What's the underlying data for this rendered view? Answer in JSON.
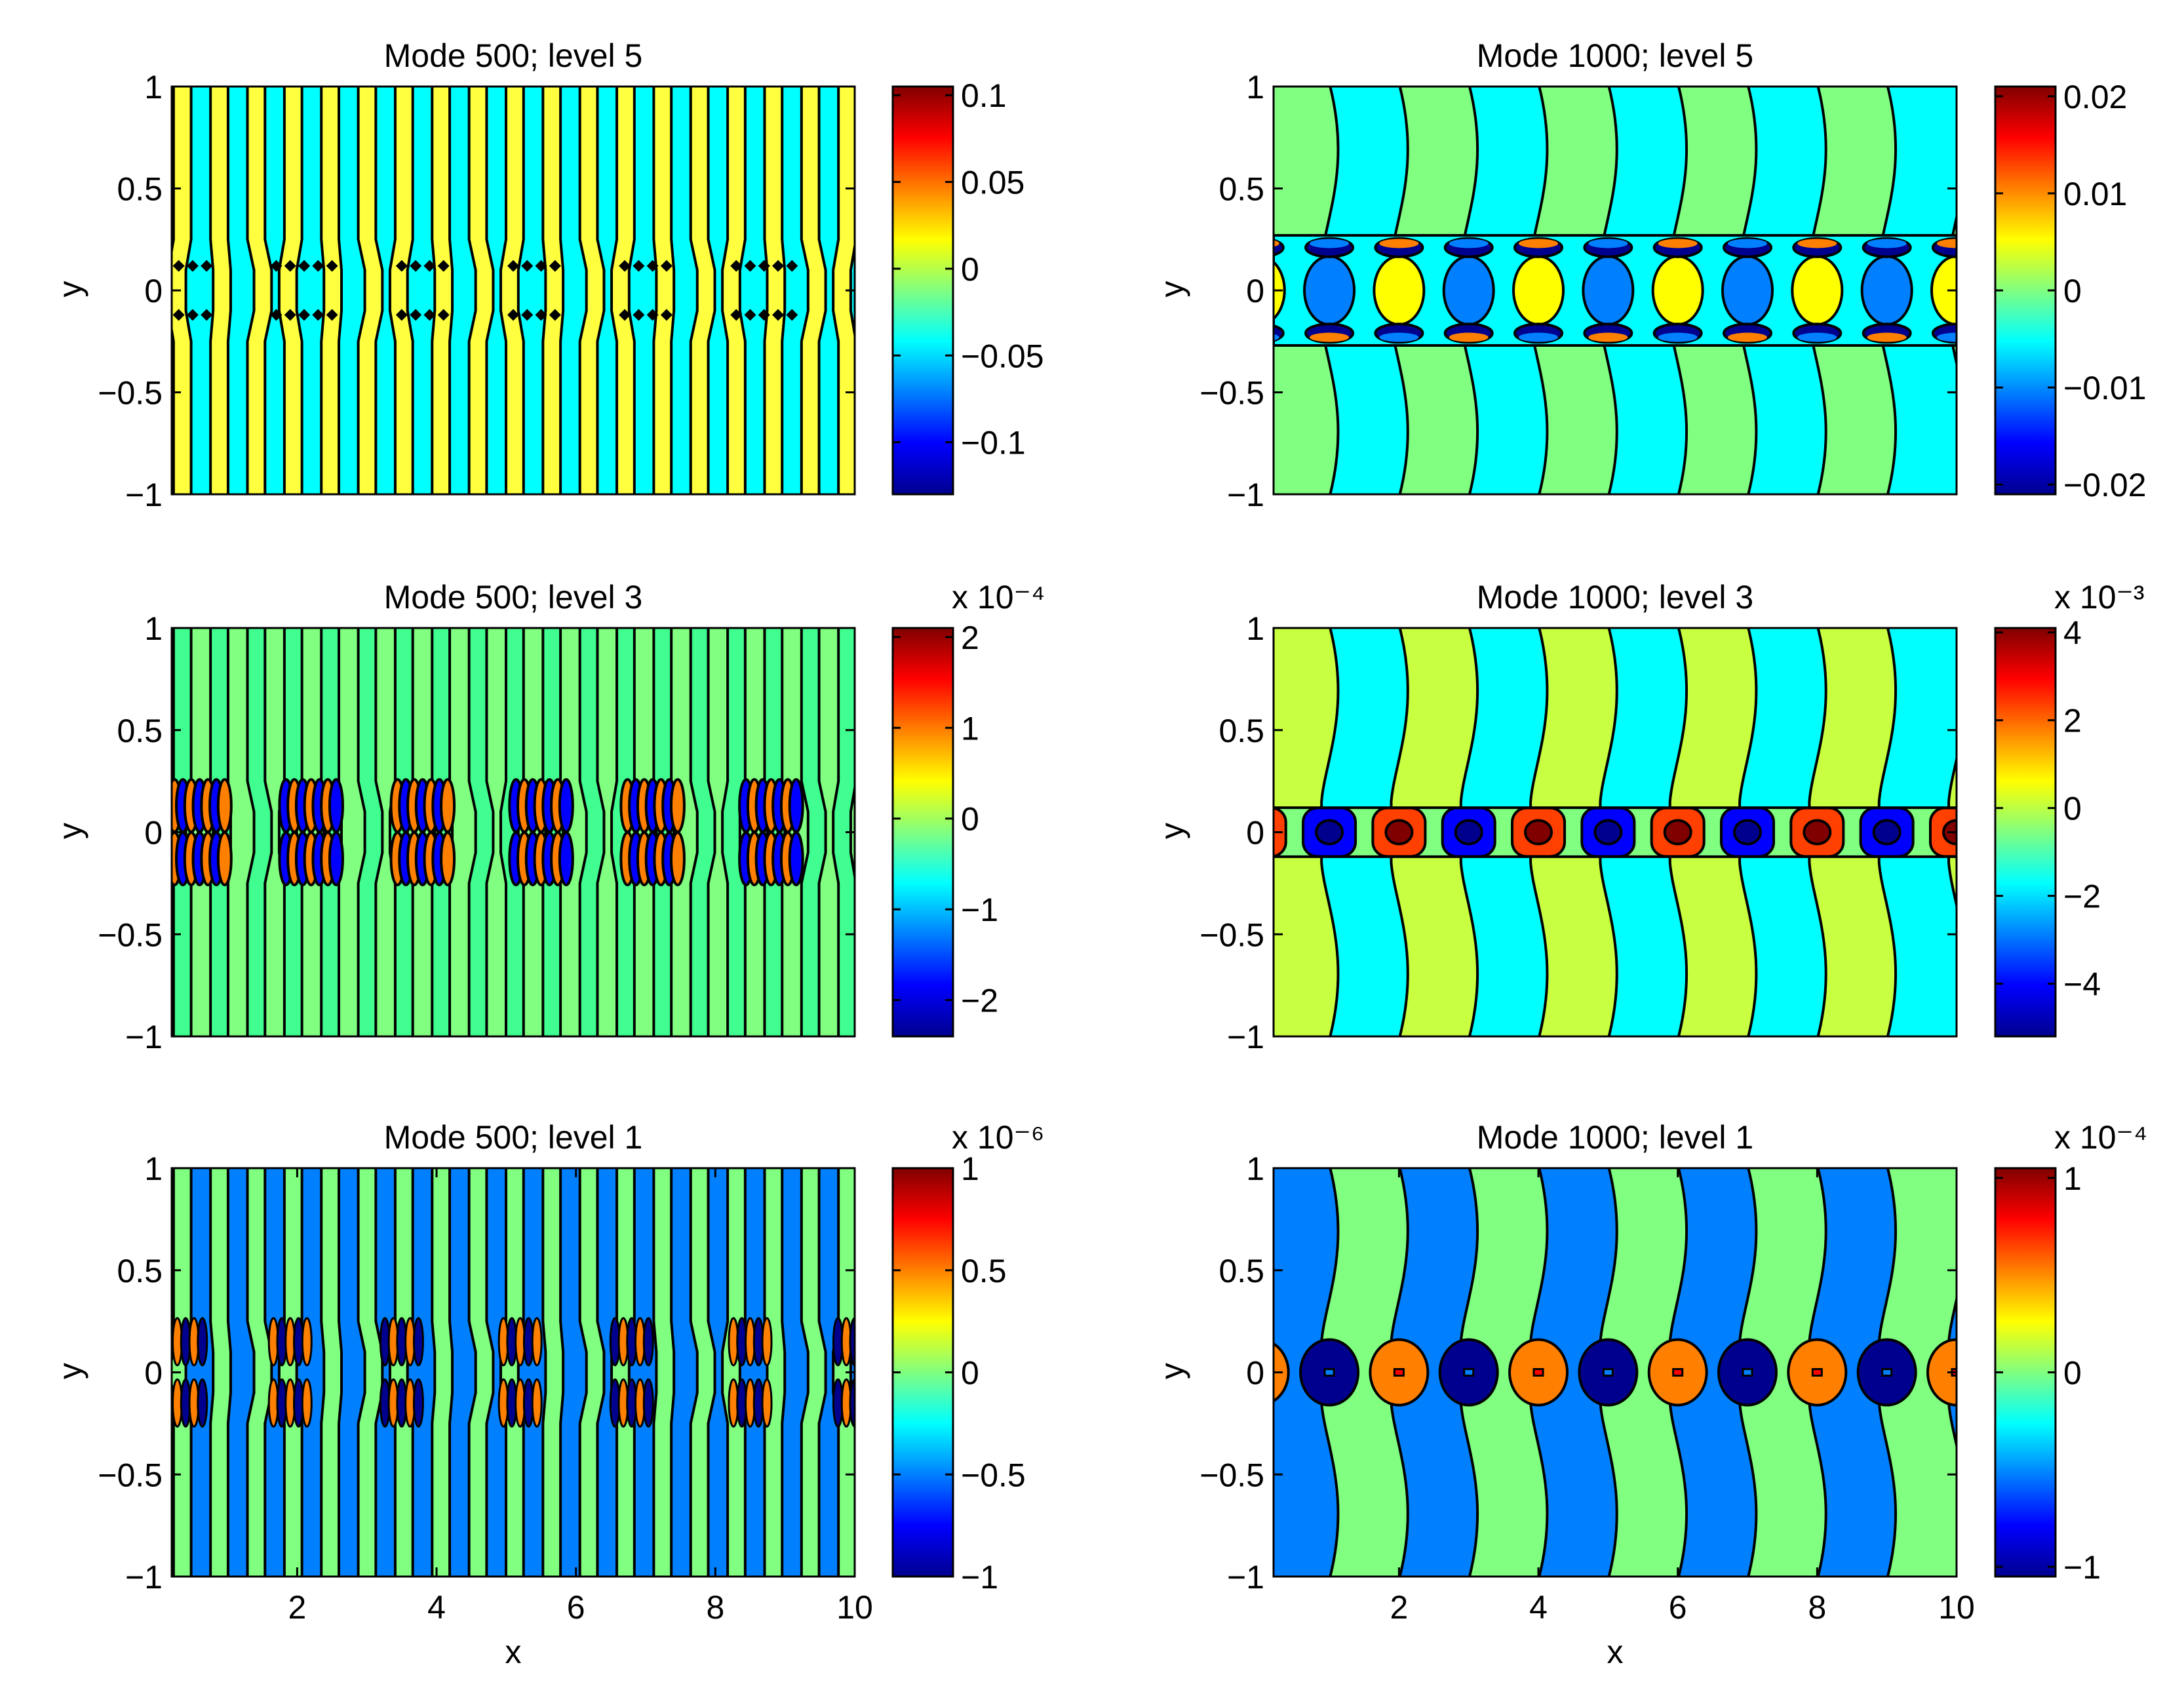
{
  "figure": {
    "background": "#ffffff"
  },
  "colormap": [
    "#00008f",
    "#0000ff",
    "#0080ff",
    "#00ffff",
    "#80ff80",
    "#ffff00",
    "#ff8000",
    "#ff0000",
    "#800000"
  ],
  "chart_data": [
    {
      "type": "heatmap",
      "title": "Mode 500; level 5",
      "xlabel": "",
      "ylabel": "y",
      "xlim": [
        0.2,
        10
      ],
      "ylim": [
        -1,
        1
      ],
      "xticks": [],
      "yticks": [
        "1",
        "0.5",
        "0",
        "−0.5",
        "−1"
      ],
      "colorbar": {
        "ticks": [
          "0.1",
          "0.05",
          "0",
          "−0.05",
          "−0.1"
        ],
        "exponent": "",
        "range": [
          -0.13,
          0.105
        ]
      },
      "pattern": "stripes",
      "stripe_period": 0.53,
      "stripe_colors": [
        "#00ffff",
        "#ffff40"
      ],
      "core_style": "diamonds"
    },
    {
      "type": "heatmap",
      "title": "Mode 1000; level 5",
      "xlabel": "",
      "ylabel": "y",
      "xlim": [
        0.2,
        10
      ],
      "ylim": [
        -1,
        1
      ],
      "xticks": [],
      "yticks": [
        "1",
        "0.5",
        "0",
        "−0.5",
        "−1"
      ],
      "colorbar": {
        "ticks": [
          "0.02",
          "0.01",
          "0",
          "−0.01",
          "−0.02"
        ],
        "exponent": "",
        "range": [
          -0.021,
          0.021
        ]
      },
      "pattern": "waves",
      "stripe_period": 2,
      "stripe_colors": [
        "#80ff80",
        "#00ffff"
      ],
      "core_style": "cells",
      "core_colors": [
        "#ffff00",
        "#0080ff"
      ]
    },
    {
      "type": "heatmap",
      "title": "Mode 500; level 3",
      "xlabel": "",
      "ylabel": "y",
      "xlim": [
        0.2,
        10
      ],
      "ylim": [
        -1,
        1
      ],
      "xticks": [],
      "yticks": [
        "1",
        "0.5",
        "0",
        "−0.5",
        "−1"
      ],
      "colorbar": {
        "ticks": [
          "2",
          "1",
          "0",
          "−1",
          "−2"
        ],
        "exponent": "x 10⁻⁴",
        "range": [
          -2.4,
          2.1
        ]
      },
      "pattern": "stripes",
      "stripe_period": 0.53,
      "stripe_colors": [
        "#80ff80",
        "#40ff90"
      ],
      "core_style": "blobs"
    },
    {
      "type": "heatmap",
      "title": "Mode 1000; level 3",
      "xlabel": "",
      "ylabel": "y",
      "xlim": [
        0.2,
        10
      ],
      "ylim": [
        -1,
        1
      ],
      "xticks": [],
      "yticks": [
        "1",
        "0.5",
        "0",
        "−0.5",
        "−1"
      ],
      "colorbar": {
        "ticks": [
          "4",
          "2",
          "0",
          "−2",
          "−4"
        ],
        "exponent": "x 10⁻³",
        "range": [
          -5.2,
          4.1
        ]
      },
      "pattern": "waves",
      "stripe_period": 2,
      "stripe_colors": [
        "#c8ff40",
        "#00ffff"
      ],
      "core_style": "squares",
      "core_colors": [
        "#ff4000",
        "#0000ff"
      ]
    },
    {
      "type": "heatmap",
      "title": "Mode 500; level 1",
      "xlabel": "x",
      "ylabel": "y",
      "xlim": [
        0.2,
        10
      ],
      "ylim": [
        -1,
        1
      ],
      "xticks": [
        "2",
        "4",
        "6",
        "8",
        "10"
      ],
      "yticks": [
        "1",
        "0.5",
        "0",
        "−0.5",
        "−1"
      ],
      "colorbar": {
        "ticks": [
          "1",
          "0.5",
          "0",
          "−0.5",
          "−1"
        ],
        "exponent": "x 10⁻⁶",
        "range": [
          -1,
          1
        ]
      },
      "pattern": "stripes",
      "stripe_period": 0.53,
      "stripe_colors": [
        "#0080ff",
        "#80ff80"
      ],
      "core_style": "ellipses"
    },
    {
      "type": "heatmap",
      "title": "Mode 1000; level 1",
      "xlabel": "x",
      "ylabel": "y",
      "xlim": [
        0.2,
        10
      ],
      "ylim": [
        -1,
        1
      ],
      "xticks": [
        "2",
        "4",
        "6",
        "8",
        "10"
      ],
      "yticks": [
        "1",
        "0.5",
        "0",
        "−0.5",
        "−1"
      ],
      "colorbar": {
        "ticks": [
          "1",
          "0",
          "−1"
        ],
        "exponent": "x 10⁻⁴",
        "range": [
          -1.05,
          1.05
        ]
      },
      "pattern": "waves",
      "stripe_period": 2,
      "stripe_colors": [
        "#0080ff",
        "#80ff80"
      ],
      "core_style": "ovals",
      "core_colors": [
        "#ff8000",
        "#00008f"
      ]
    }
  ]
}
